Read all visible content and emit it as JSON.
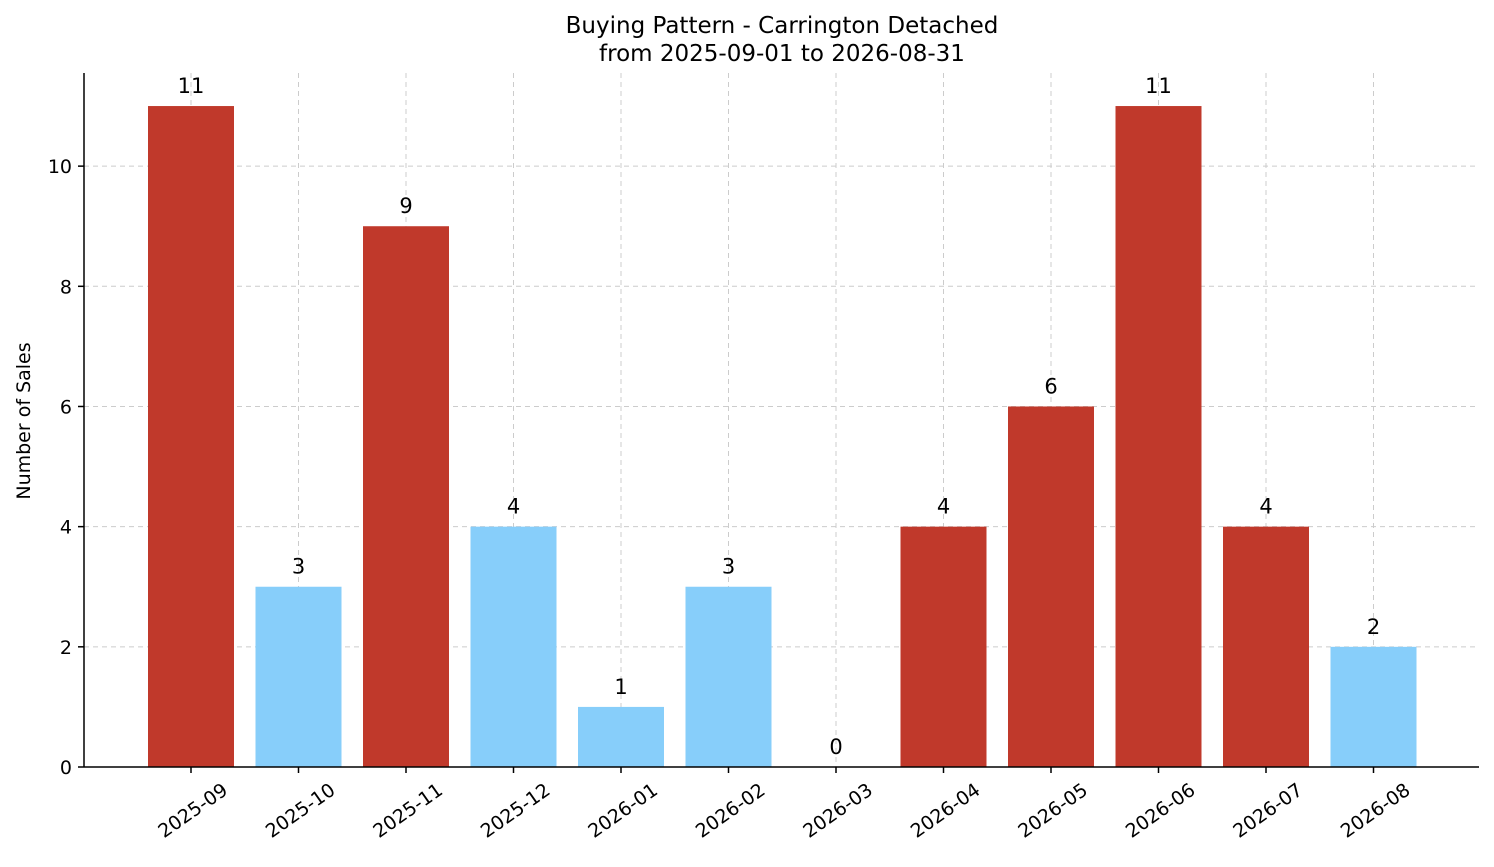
{
  "chart_data": {
    "type": "bar",
    "title": "Buying Pattern - Carrington Detached",
    "subtitle": "from 2025-09-01 to 2026-08-31",
    "xlabel": "",
    "ylabel": "Number of Sales",
    "categories": [
      "2025-09",
      "2025-10",
      "2025-11",
      "2025-12",
      "2026-01",
      "2026-02",
      "2026-03",
      "2026-04",
      "2026-05",
      "2026-06",
      "2026-07",
      "2026-08"
    ],
    "values": [
      11,
      3,
      9,
      4,
      1,
      3,
      0,
      4,
      6,
      11,
      4,
      2
    ],
    "data_labels": [
      "11",
      "3",
      "9",
      "4",
      "1",
      "3",
      "0",
      "4",
      "6",
      "11",
      "4",
      "2"
    ],
    "bar_colors": [
      "#c0392b",
      "#87cefa",
      "#c0392b",
      "#87cefa",
      "#87cefa",
      "#87cefa",
      "#87cefa",
      "#c0392b",
      "#c0392b",
      "#c0392b",
      "#c0392b",
      "#87cefa"
    ],
    "ylim": [
      0,
      11.55
    ],
    "yticks": [
      0,
      2,
      4,
      6,
      8,
      10
    ],
    "ytick_labels": [
      "0",
      "2",
      "4",
      "6",
      "8",
      "10"
    ],
    "grid": true,
    "legend": "none"
  }
}
